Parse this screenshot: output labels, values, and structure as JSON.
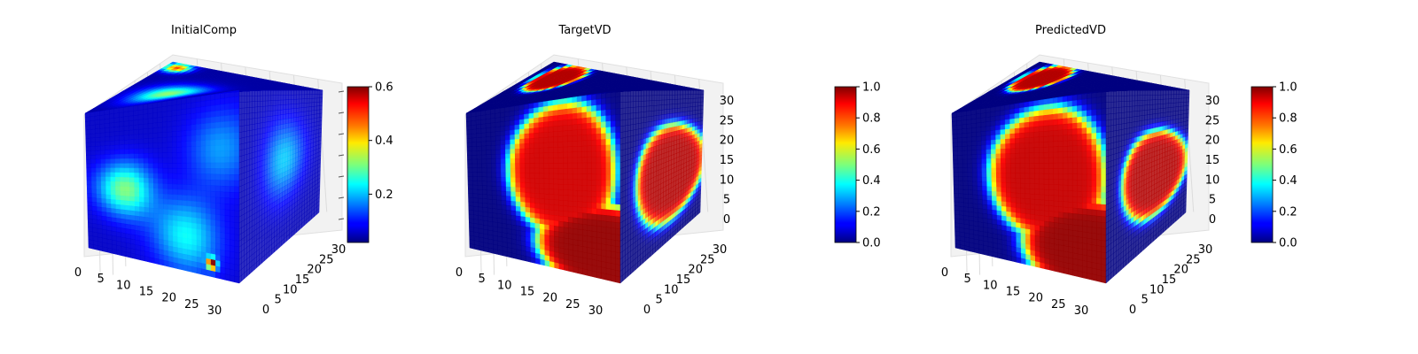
{
  "chart_data": [
    {
      "type": "voxel-cube-3d",
      "title": "InitialComp",
      "x_ticks": [
        "0",
        "5",
        "10",
        "15",
        "20",
        "25",
        "30"
      ],
      "y_ticks": [
        "0",
        "5",
        "10",
        "15",
        "20",
        "25",
        "30"
      ],
      "z_ticks": [],
      "grid": true,
      "colormap": "jet",
      "colorbar": {
        "min": 0.02,
        "max": 0.6,
        "ticks": [
          "0.2",
          "0.4",
          "0.6"
        ],
        "tick_values": [
          0.2,
          0.4,
          0.6
        ]
      },
      "face_fields": {
        "top": {
          "base": 0.04,
          "blobs": [
            [
              0.35,
              0.35,
              0.22,
              0.28
            ],
            [
              0.08,
              0.92,
              0.08,
              0.45
            ]
          ]
        },
        "front": {
          "base": 0.06,
          "blobs": [
            [
              0.25,
              0.55,
              0.18,
              0.25
            ],
            [
              0.65,
              0.8,
              0.22,
              0.18
            ],
            [
              0.88,
              0.3,
              0.22,
              0.12
            ],
            [
              0.82,
              0.93,
              0.03,
              0.58
            ]
          ]
        },
        "side": {
          "base": 0.05,
          "blobs": [
            [
              0.55,
              0.45,
              0.25,
              0.16
            ]
          ]
        }
      }
    },
    {
      "type": "voxel-cube-3d",
      "title": "TargetVD",
      "x_ticks": [
        "0",
        "5",
        "10",
        "15",
        "20",
        "25",
        "30"
      ],
      "y_ticks": [
        "0",
        "5",
        "10",
        "15",
        "20",
        "25",
        "30"
      ],
      "z_ticks": [
        "0",
        "5",
        "10",
        "15",
        "20",
        "25",
        "30"
      ],
      "grid": true,
      "colormap": "jet",
      "colorbar": {
        "min": 0.0,
        "max": 1.0,
        "ticks": [
          "0.0",
          "0.2",
          "0.4",
          "0.6",
          "0.8",
          "1.0"
        ],
        "tick_values": [
          0.0,
          0.2,
          0.4,
          0.6,
          0.8,
          1.0
        ]
      },
      "face_fields": {
        "top": {
          "base": 0.0,
          "ellipses": [
            [
              0.18,
              0.72,
              0.13,
              0.3,
              0.95
            ]
          ]
        },
        "front": {
          "base": 0.0,
          "ellipses": [
            [
              0.62,
              0.42,
              0.35,
              0.4,
              0.92
            ],
            [
              0.9,
              0.85,
              0.45,
              0.25,
              0.98
            ]
          ]
        },
        "side": {
          "base": 0.0,
          "ellipses": [
            [
              0.62,
              0.55,
              0.42,
              0.32,
              0.95
            ]
          ]
        }
      }
    },
    {
      "type": "voxel-cube-3d",
      "title": "PredictedVD",
      "x_ticks": [
        "0",
        "5",
        "10",
        "15",
        "20",
        "25",
        "30"
      ],
      "y_ticks": [
        "0",
        "5",
        "10",
        "15",
        "20",
        "25",
        "30"
      ],
      "z_ticks": [
        "0",
        "5",
        "10",
        "15",
        "20",
        "25",
        "30"
      ],
      "grid": true,
      "colormap": "jet",
      "colorbar": {
        "min": 0.0,
        "max": 1.0,
        "ticks": [
          "0.0",
          "0.2",
          "0.4",
          "0.6",
          "0.8",
          "1.0"
        ],
        "tick_values": [
          0.0,
          0.2,
          0.4,
          0.6,
          0.8,
          1.0
        ]
      },
      "face_fields": {
        "top": {
          "base": 0.0,
          "ellipses": [
            [
              0.18,
              0.72,
              0.13,
              0.3,
              0.95
            ]
          ]
        },
        "front": {
          "base": 0.0,
          "ellipses": [
            [
              0.62,
              0.45,
              0.38,
              0.4,
              0.93
            ],
            [
              0.9,
              0.85,
              0.45,
              0.28,
              0.98
            ]
          ]
        },
        "side": {
          "base": 0.0,
          "ellipses": [
            [
              0.6,
              0.55,
              0.4,
              0.28,
              0.95
            ]
          ]
        }
      }
    }
  ]
}
